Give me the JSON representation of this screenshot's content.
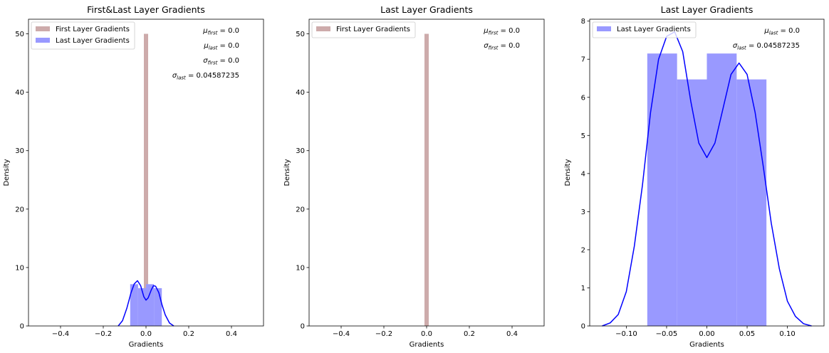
{
  "colors": {
    "first": "#bc8f8f",
    "last": "#0000ff",
    "last_fill": "#9999ff"
  },
  "chart_data": [
    {
      "type": "histogram",
      "title": "First&Last Layer Gradients",
      "xlabel": "Gradients",
      "ylabel": "Density",
      "xlim": [
        -0.55,
        0.55
      ],
      "ylim": [
        0,
        52.5
      ],
      "xticks": [
        -0.4,
        -0.2,
        0.0,
        0.2,
        0.4
      ],
      "xtick_labels": [
        "−0.4",
        "−0.2",
        "0.0",
        "0.2",
        "0.4"
      ],
      "yticks": [
        0,
        10,
        20,
        30,
        40,
        50
      ],
      "ytick_labels": [
        "0",
        "10",
        "20",
        "30",
        "40",
        "50"
      ],
      "legend": {
        "location": "upper-left",
        "entries": [
          "First Layer Gradients",
          "Last Layer Gradients"
        ]
      },
      "annotations": [
        {
          "sym": "μ",
          "sub": "first",
          "value": "= 0.0"
        },
        {
          "sym": "μ",
          "sub": "last",
          "value": "= 0.0"
        },
        {
          "sym": "σ",
          "sub": "first",
          "value": "= 0.0"
        },
        {
          "sym": "σ",
          "sub": "last",
          "value": "= 0.04587235"
        }
      ],
      "series": [
        {
          "name": "First Layer Gradients",
          "color_key": "first",
          "bins": [
            [
              -0.01,
              0.01,
              50
            ]
          ]
        },
        {
          "name": "Last Layer Gradients",
          "color_key": "last",
          "bins": [
            [
              -0.074,
              -0.037,
              7.15
            ],
            [
              -0.037,
              0.0,
              6.47
            ],
            [
              0.0,
              0.037,
              7.15
            ],
            [
              0.037,
              0.074,
              6.47
            ]
          ],
          "kde": [
            [
              -0.13,
              0.0
            ],
            [
              -0.11,
              0.9
            ],
            [
              -0.09,
              3.0
            ],
            [
              -0.07,
              5.7
            ],
            [
              -0.055,
              7.2
            ],
            [
              -0.04,
              7.75
            ],
            [
              -0.025,
              6.9
            ],
            [
              -0.01,
              5.0
            ],
            [
              0.0,
              4.42
            ],
            [
              0.01,
              4.8
            ],
            [
              0.025,
              6.2
            ],
            [
              0.035,
              6.9
            ],
            [
              0.045,
              6.8
            ],
            [
              0.06,
              5.7
            ],
            [
              0.075,
              3.6
            ],
            [
              0.09,
              1.9
            ],
            [
              0.11,
              0.5
            ],
            [
              0.13,
              0.0
            ]
          ]
        }
      ]
    },
    {
      "type": "histogram",
      "title": "Last Layer Gradients",
      "xlabel": "Gradients",
      "ylabel": "Density",
      "xlim": [
        -0.55,
        0.55
      ],
      "ylim": [
        0,
        52.5
      ],
      "xticks": [
        -0.4,
        -0.2,
        0.0,
        0.2,
        0.4
      ],
      "xtick_labels": [
        "−0.4",
        "−0.2",
        "0.0",
        "0.2",
        "0.4"
      ],
      "yticks": [
        0,
        10,
        20,
        30,
        40,
        50
      ],
      "ytick_labels": [
        "0",
        "10",
        "20",
        "30",
        "40",
        "50"
      ],
      "legend": {
        "location": "upper-left",
        "entries": [
          "First Layer Gradients"
        ]
      },
      "annotations": [
        {
          "sym": "μ",
          "sub": "first",
          "value": "= 0.0"
        },
        {
          "sym": "σ",
          "sub": "first",
          "value": "= 0.0"
        }
      ],
      "series": [
        {
          "name": "First Layer Gradients",
          "color_key": "first",
          "bins": [
            [
              -0.01,
              0.01,
              50
            ]
          ]
        }
      ]
    },
    {
      "type": "histogram",
      "title": "Last Layer Gradients",
      "xlabel": "Gradients",
      "ylabel": "Density",
      "xlim": [
        -0.1455,
        0.1455
      ],
      "ylim": [
        0,
        8.05
      ],
      "xticks": [
        -0.1,
        -0.05,
        0.0,
        0.05,
        0.1
      ],
      "xtick_labels": [
        "−0.10",
        "−0.05",
        "0.00",
        "0.05",
        "0.10"
      ],
      "yticks": [
        0,
        1,
        2,
        3,
        4,
        5,
        6,
        7,
        8
      ],
      "ytick_labels": [
        "0",
        "1",
        "2",
        "3",
        "4",
        "5",
        "6",
        "7",
        "8"
      ],
      "legend": {
        "location": "upper-left",
        "entries": [
          "Last Layer Gradients"
        ]
      },
      "annotations": [
        {
          "sym": "μ",
          "sub": "last",
          "value": "= 0.0"
        },
        {
          "sym": "σ",
          "sub": "last",
          "value": "= 0.04587235"
        }
      ],
      "series": [
        {
          "name": "Last Layer Gradients",
          "color_key": "last",
          "bins": [
            [
              -0.074,
              -0.037,
              7.15
            ],
            [
              -0.037,
              0.0,
              6.47
            ],
            [
              0.0,
              0.037,
              7.15
            ],
            [
              0.037,
              0.074,
              6.47
            ]
          ],
          "kde": [
            [
              -0.13,
              0.0
            ],
            [
              -0.12,
              0.08
            ],
            [
              -0.11,
              0.3
            ],
            [
              -0.1,
              0.9
            ],
            [
              -0.09,
              2.1
            ],
            [
              -0.08,
              3.7
            ],
            [
              -0.07,
              5.6
            ],
            [
              -0.06,
              7.0
            ],
            [
              -0.05,
              7.6
            ],
            [
              -0.04,
              7.72
            ],
            [
              -0.03,
              7.2
            ],
            [
              -0.02,
              5.9
            ],
            [
              -0.01,
              4.8
            ],
            [
              0.0,
              4.42
            ],
            [
              0.01,
              4.8
            ],
            [
              0.02,
              5.7
            ],
            [
              0.03,
              6.6
            ],
            [
              0.04,
              6.9
            ],
            [
              0.05,
              6.6
            ],
            [
              0.06,
              5.6
            ],
            [
              0.07,
              4.2
            ],
            [
              0.08,
              2.7
            ],
            [
              0.09,
              1.5
            ],
            [
              0.1,
              0.65
            ],
            [
              0.11,
              0.25
            ],
            [
              0.12,
              0.06
            ],
            [
              0.13,
              0.0
            ]
          ]
        }
      ]
    }
  ]
}
